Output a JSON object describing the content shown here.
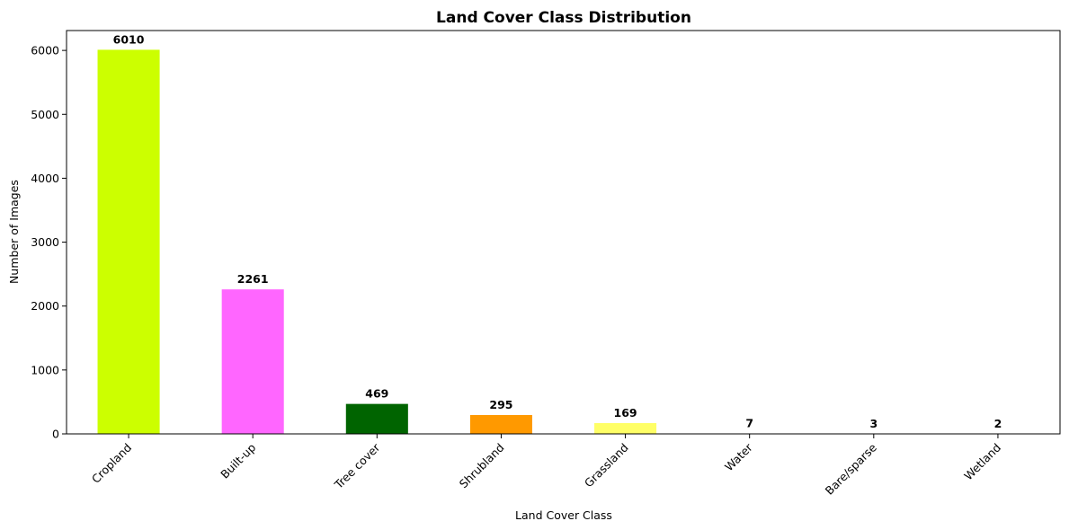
{
  "chart_data": {
    "type": "bar",
    "title": "Land Cover Class Distribution",
    "xlabel": "Land Cover Class",
    "ylabel": "Number of Images",
    "categories": [
      "Cropland",
      "Built-up",
      "Tree cover",
      "Shrubland",
      "Grassland",
      "Water",
      "Bare/sparse",
      "Wetland"
    ],
    "values": [
      6010,
      2261,
      469,
      295,
      169,
      7,
      3,
      2
    ],
    "data_labels": [
      "6010",
      "2261",
      "469",
      "295",
      "169",
      "7",
      "3",
      "2"
    ],
    "colors": [
      "#ccff00",
      "#ff66ff",
      "#006400",
      "#ff9900",
      "#ffff66",
      "#0064c8",
      "#b4b4b4",
      "#0096a0"
    ],
    "ylim": [
      0,
      6311
    ],
    "yticks": [
      0,
      1000,
      2000,
      3000,
      4000,
      5000,
      6000
    ],
    "ytick_labels": [
      "0",
      "1000",
      "2000",
      "3000",
      "4000",
      "5000",
      "6000"
    ],
    "grid": false,
    "legend": "none"
  }
}
